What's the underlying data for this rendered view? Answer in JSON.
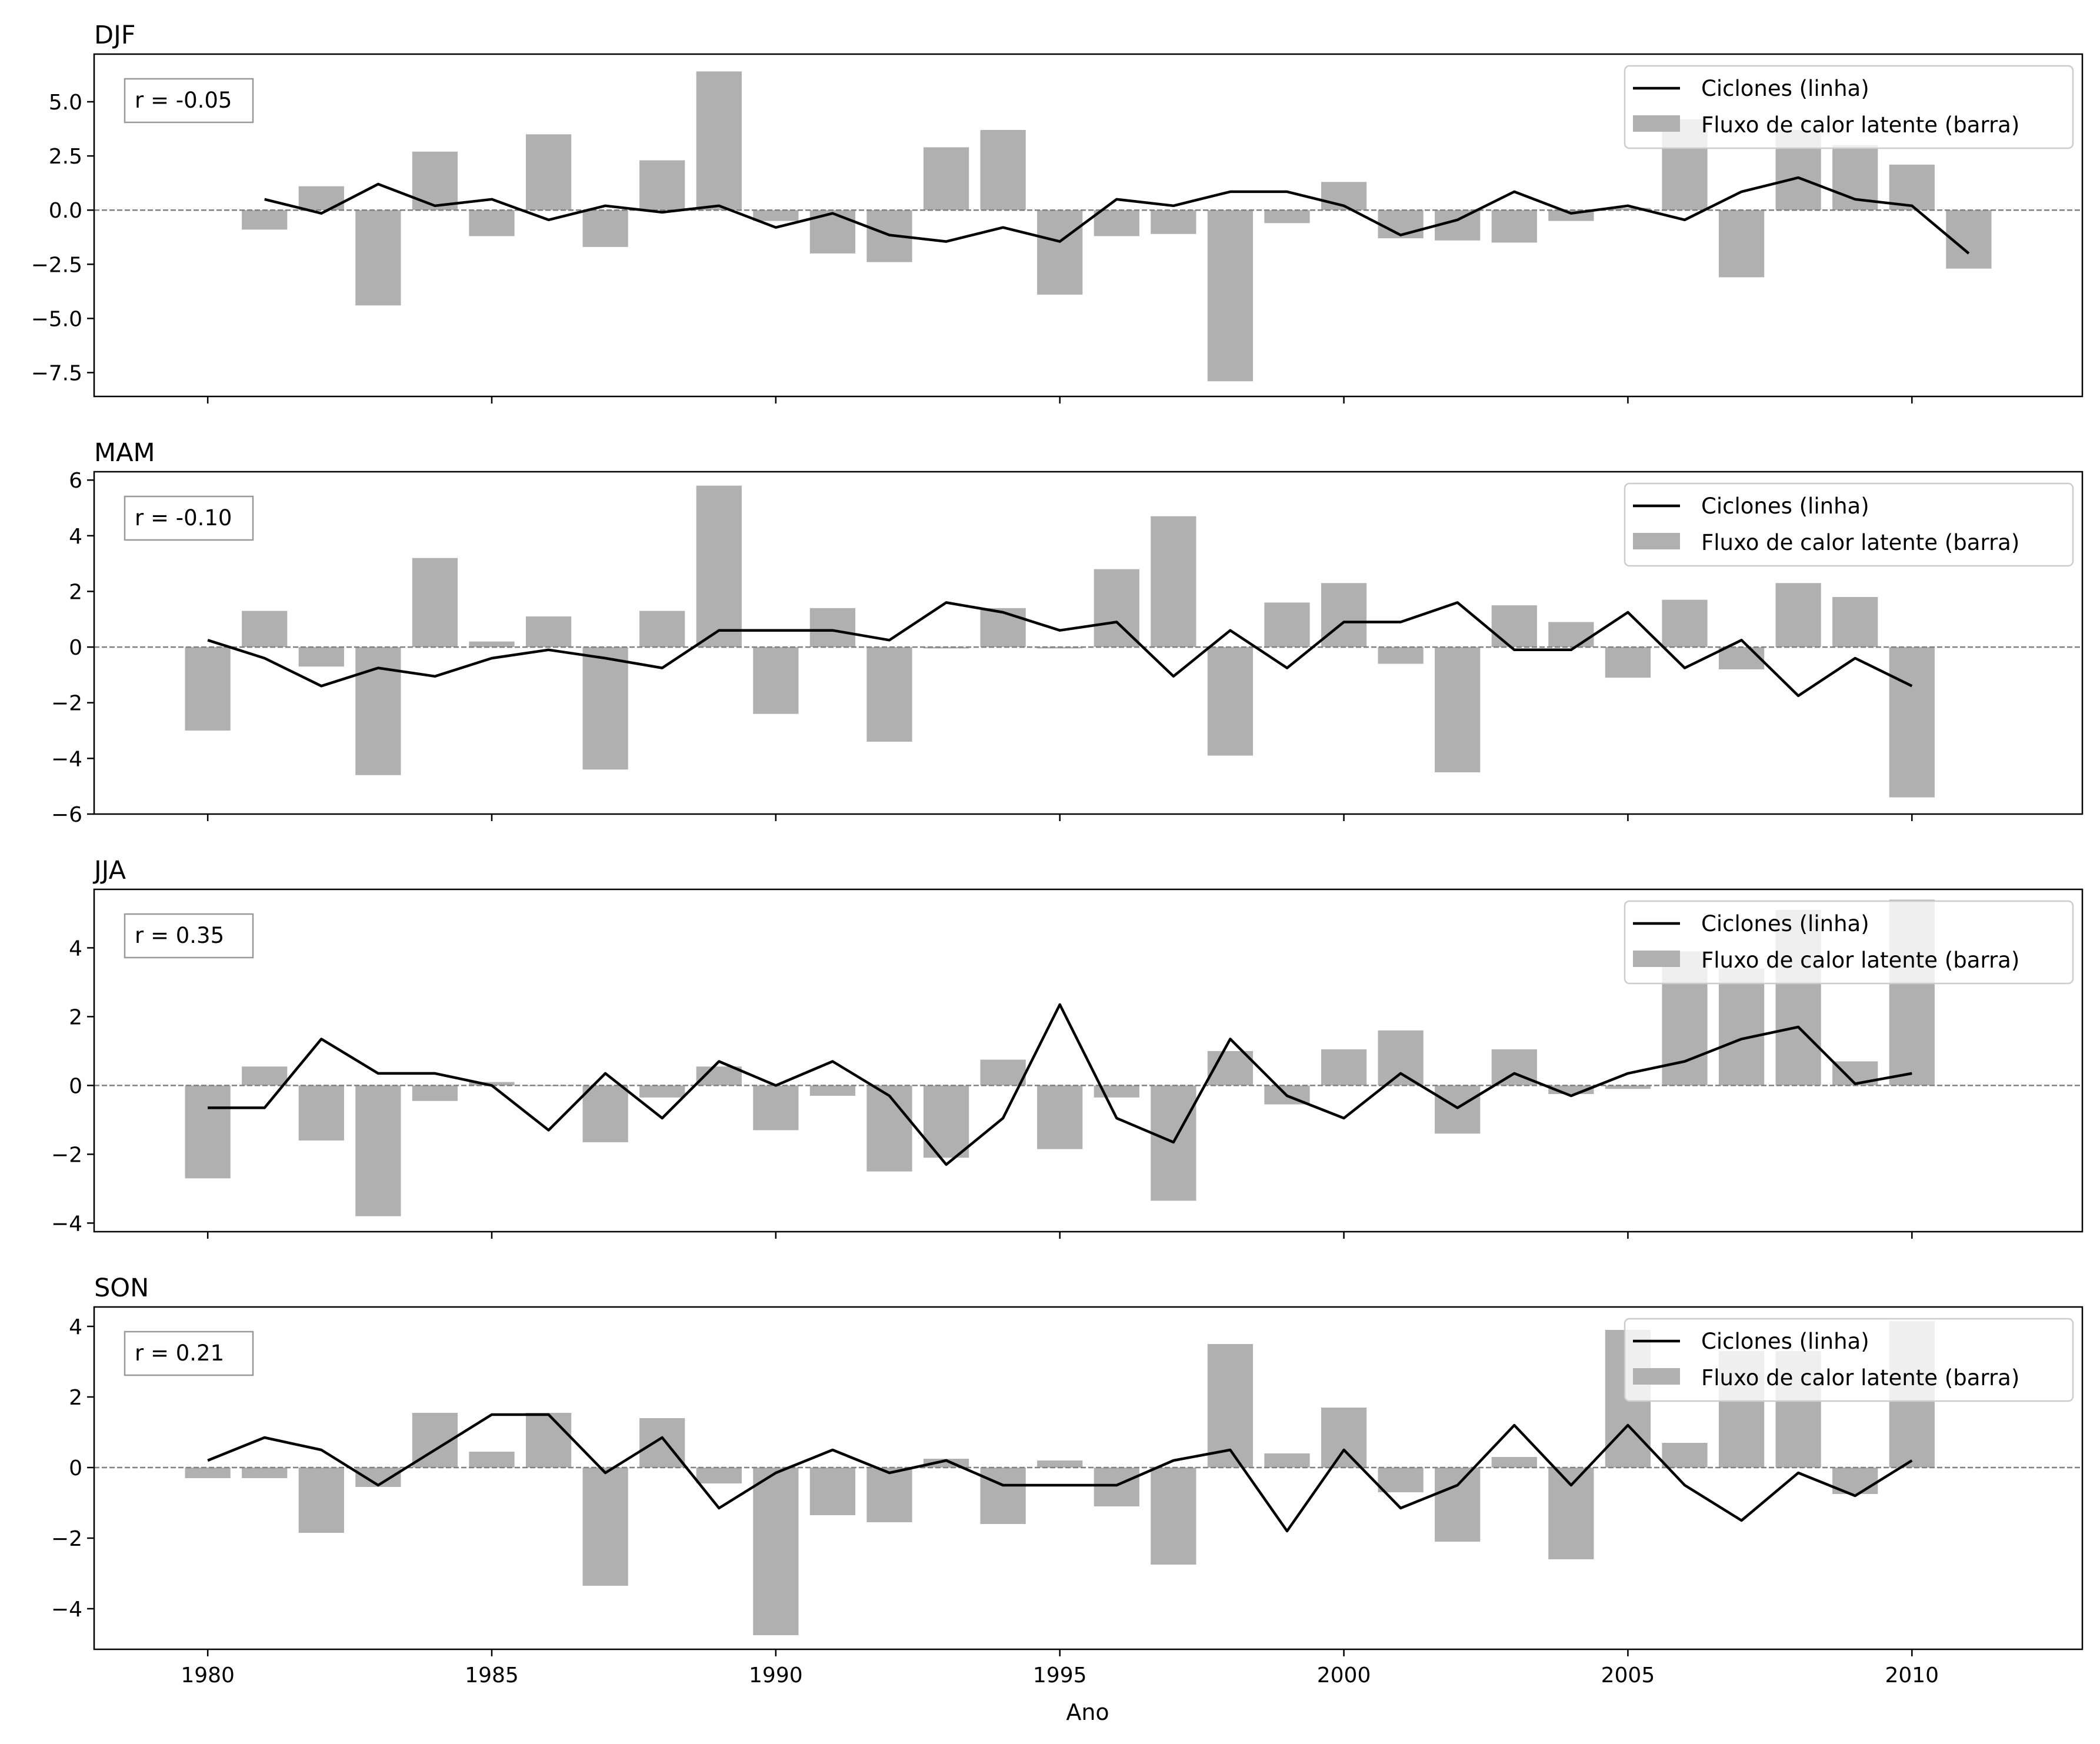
{
  "figure": {
    "xlabel": "Ano"
  },
  "chart_data": [
    {
      "type": "bar",
      "title": "DJF",
      "annotation": "r = -0.05",
      "xlabel": "Ano",
      "ylabel": "",
      "xlim": [
        1978,
        2013
      ],
      "ylim": [
        -8.6,
        7.2
      ],
      "yticks": [
        -7.5,
        -5.0,
        -2.5,
        0.0,
        2.5,
        5.0
      ],
      "ytick_labels": [
        "−7.5",
        "−5.0",
        "−2.5",
        "0.0",
        "2.5",
        "5.0"
      ],
      "xticks": [
        1980,
        1985,
        1990,
        1995,
        2000,
        2005,
        2010
      ],
      "xtick_labels": [],
      "legend_position": "top-right",
      "legend": [
        "Ciclones (linha)",
        "Fluxo de calor latente (barra)"
      ],
      "bars": {
        "name": "Fluxo de calor latente (barra)",
        "color": "#b0b0b0",
        "x": [
          1981,
          1982,
          1983,
          1984,
          1985,
          1986,
          1987,
          1988,
          1989,
          1990,
          1991,
          1992,
          1993,
          1994,
          1995,
          1996,
          1997,
          1998,
          1999,
          2000,
          2001,
          2002,
          2003,
          2004,
          2005,
          2006,
          2007,
          2008,
          2009,
          2010,
          2011
        ],
        "values": [
          -0.9,
          1.1,
          -4.4,
          2.7,
          -1.2,
          3.5,
          -1.7,
          2.3,
          6.4,
          -0.5,
          -2.0,
          -2.4,
          2.9,
          3.7,
          -3.9,
          -1.2,
          -1.1,
          -7.9,
          -0.6,
          1.3,
          -1.3,
          -1.4,
          -1.5,
          -0.5,
          0.1,
          4.2,
          -3.1,
          3.7,
          3.0,
          2.1,
          -2.7
        ]
      },
      "line": {
        "name": "Ciclones (linha)",
        "color": "#000000",
        "x": [
          1981,
          1982,
          1983,
          1984,
          1985,
          1986,
          1987,
          1988,
          1989,
          1990,
          1991,
          1992,
          1993,
          1994,
          1995,
          1996,
          1997,
          1998,
          1999,
          2000,
          2001,
          2002,
          2003,
          2004,
          2005,
          2006,
          2007,
          2008,
          2009,
          2010,
          2011
        ],
        "values": [
          0.5,
          -0.15,
          1.2,
          0.2,
          0.5,
          -0.45,
          0.2,
          -0.1,
          0.2,
          -0.8,
          -0.15,
          -1.15,
          -1.45,
          -0.8,
          -1.45,
          0.5,
          0.2,
          0.85,
          0.85,
          0.2,
          -1.15,
          -0.45,
          0.85,
          -0.15,
          0.2,
          -0.45,
          0.85,
          1.5,
          0.5,
          0.2,
          -2.0
        ]
      }
    },
    {
      "type": "bar",
      "title": "MAM",
      "annotation": "r = -0.10",
      "xlabel": "Ano",
      "ylabel": "",
      "xlim": [
        1978,
        2013
      ],
      "ylim": [
        -6.0,
        6.3
      ],
      "yticks": [
        -6,
        -4,
        -2,
        0,
        2,
        4,
        6
      ],
      "ytick_labels": [
        "−6",
        "−4",
        "−2",
        "0",
        "2",
        "4",
        "6"
      ],
      "xticks": [
        1980,
        1985,
        1990,
        1995,
        2000,
        2005,
        2010
      ],
      "xtick_labels": [],
      "legend_position": "top-right",
      "legend": [
        "Ciclones (linha)",
        "Fluxo de calor latente (barra)"
      ],
      "bars": {
        "name": "Fluxo de calor latente (barra)",
        "color": "#b0b0b0",
        "x": [
          1980,
          1981,
          1982,
          1983,
          1984,
          1985,
          1986,
          1987,
          1988,
          1989,
          1990,
          1991,
          1992,
          1993,
          1994,
          1995,
          1996,
          1997,
          1998,
          1999,
          2000,
          2001,
          2002,
          2003,
          2004,
          2005,
          2006,
          2007,
          2008,
          2009,
          2010
        ],
        "values": [
          -3.0,
          1.3,
          -0.7,
          -4.6,
          3.2,
          0.2,
          1.1,
          -4.4,
          1.3,
          5.8,
          -2.4,
          1.4,
          -3.4,
          -0.05,
          1.4,
          -0.05,
          2.8,
          4.7,
          -3.9,
          1.6,
          2.3,
          -0.6,
          -4.5,
          1.5,
          0.9,
          -1.1,
          1.7,
          -0.8,
          2.3,
          1.8,
          -5.4
        ]
      },
      "line": {
        "name": "Ciclones (linha)",
        "color": "#000000",
        "x": [
          1980,
          1981,
          1982,
          1983,
          1984,
          1985,
          1986,
          1987,
          1988,
          1989,
          1990,
          1991,
          1992,
          1993,
          1994,
          1995,
          1996,
          1997,
          1998,
          1999,
          2000,
          2001,
          2002,
          2003,
          2004,
          2005,
          2006,
          2007,
          2008,
          2009,
          2010
        ],
        "values": [
          0.25,
          -0.4,
          -1.4,
          -0.75,
          -1.05,
          -0.4,
          -0.1,
          -0.4,
          -0.75,
          0.6,
          0.6,
          0.6,
          0.25,
          1.6,
          1.25,
          0.6,
          0.9,
          -1.05,
          0.6,
          -0.75,
          0.9,
          0.9,
          1.6,
          -0.1,
          -0.1,
          1.25,
          -0.75,
          0.25,
          -1.75,
          -0.4,
          -1.4
        ]
      }
    },
    {
      "type": "bar",
      "title": "JJA",
      "annotation": "r = 0.35",
      "xlabel": "Ano",
      "ylabel": "",
      "xlim": [
        1978,
        2013
      ],
      "ylim": [
        -4.25,
        5.7
      ],
      "yticks": [
        -4,
        -2,
        0,
        2,
        4
      ],
      "ytick_labels": [
        "−4",
        "−2",
        "0",
        "2",
        "4"
      ],
      "xticks": [
        1980,
        1985,
        1990,
        1995,
        2000,
        2005,
        2010
      ],
      "xtick_labels": [],
      "legend_position": "top-right",
      "legend": [
        "Ciclones (linha)",
        "Fluxo de calor latente (barra)"
      ],
      "bars": {
        "name": "Fluxo de calor latente (barra)",
        "color": "#b0b0b0",
        "x": [
          1980,
          1981,
          1982,
          1983,
          1984,
          1985,
          1986,
          1987,
          1988,
          1989,
          1990,
          1991,
          1992,
          1993,
          1994,
          1995,
          1996,
          1997,
          1998,
          1999,
          2000,
          2001,
          2002,
          2003,
          2004,
          2005,
          2006,
          2007,
          2008,
          2009,
          2010
        ],
        "values": [
          -2.7,
          0.55,
          -1.6,
          -3.8,
          -0.45,
          0.1,
          0.0,
          -1.65,
          -0.35,
          0.55,
          -1.3,
          -0.3,
          -2.5,
          -2.1,
          0.75,
          -1.85,
          -0.35,
          -3.35,
          1.0,
          -0.55,
          1.05,
          1.6,
          -1.4,
          1.05,
          -0.25,
          -0.1,
          3.9,
          3.4,
          5.1,
          0.7,
          5.4
        ]
      },
      "line": {
        "name": "Ciclones (linha)",
        "color": "#000000",
        "x": [
          1980,
          1981,
          1982,
          1983,
          1984,
          1985,
          1986,
          1987,
          1988,
          1989,
          1990,
          1991,
          1992,
          1993,
          1994,
          1995,
          1996,
          1997,
          1998,
          1999,
          2000,
          2001,
          2002,
          2003,
          2004,
          2005,
          2006,
          2007,
          2008,
          2009,
          2010
        ],
        "values": [
          -0.65,
          -0.65,
          1.35,
          0.35,
          0.35,
          0.0,
          -1.3,
          0.35,
          -0.95,
          0.7,
          0.0,
          0.7,
          -0.3,
          -2.3,
          -0.95,
          2.35,
          -0.95,
          -1.65,
          1.35,
          -0.3,
          -0.95,
          0.35,
          -0.65,
          0.35,
          -0.3,
          0.35,
          0.7,
          1.35,
          1.7,
          0.05,
          0.35
        ]
      }
    },
    {
      "type": "bar",
      "title": "SON",
      "annotation": "r = 0.21",
      "xlabel": "Ano",
      "ylabel": "",
      "xlim": [
        1978,
        2013
      ],
      "ylim": [
        -5.15,
        4.55
      ],
      "yticks": [
        -4,
        -2,
        0,
        2,
        4
      ],
      "ytick_labels": [
        "−4",
        "−2",
        "0",
        "2",
        "4"
      ],
      "xticks": [
        1980,
        1985,
        1990,
        1995,
        2000,
        2005,
        2010
      ],
      "xtick_labels": [
        "1980",
        "1985",
        "1990",
        "1995",
        "2000",
        "2005",
        "2010"
      ],
      "legend_position": "top-right",
      "legend": [
        "Ciclones (linha)",
        "Fluxo de calor latente (barra)"
      ],
      "bars": {
        "name": "Fluxo de calor latente (barra)",
        "color": "#b0b0b0",
        "x": [
          1980,
          1981,
          1982,
          1983,
          1984,
          1985,
          1986,
          1987,
          1988,
          1989,
          1990,
          1991,
          1992,
          1993,
          1994,
          1995,
          1996,
          1997,
          1998,
          1999,
          2000,
          2001,
          2002,
          2003,
          2004,
          2005,
          2006,
          2007,
          2008,
          2009,
          2010
        ],
        "values": [
          -0.3,
          -0.3,
          -1.85,
          -0.55,
          1.55,
          0.45,
          1.55,
          -3.35,
          1.4,
          -0.45,
          -4.75,
          -1.35,
          -1.55,
          0.25,
          -1.6,
          0.2,
          -1.1,
          -2.75,
          3.5,
          0.4,
          1.7,
          -0.7,
          -2.1,
          0.3,
          -2.6,
          3.9,
          0.7,
          3.3,
          3.3,
          -0.75,
          4.15
        ]
      },
      "line": {
        "name": "Ciclones (linha)",
        "color": "#000000",
        "x": [
          1980,
          1981,
          1982,
          1983,
          1984,
          1985,
          1986,
          1987,
          1988,
          1989,
          1990,
          1991,
          1992,
          1993,
          1994,
          1995,
          1996,
          1997,
          1998,
          1999,
          2000,
          2001,
          2002,
          2003,
          2004,
          2005,
          2006,
          2007,
          2008,
          2009,
          2010
        ],
        "values": [
          0.2,
          0.85,
          0.5,
          -0.5,
          0.5,
          1.5,
          1.5,
          -0.15,
          0.85,
          -1.15,
          -0.15,
          0.5,
          -0.15,
          0.2,
          -0.5,
          -0.5,
          -0.5,
          0.2,
          0.5,
          -1.8,
          0.5,
          -1.15,
          -0.5,
          1.2,
          -0.5,
          1.2,
          -0.5,
          -1.5,
          -0.15,
          -0.8,
          0.2
        ]
      }
    }
  ]
}
